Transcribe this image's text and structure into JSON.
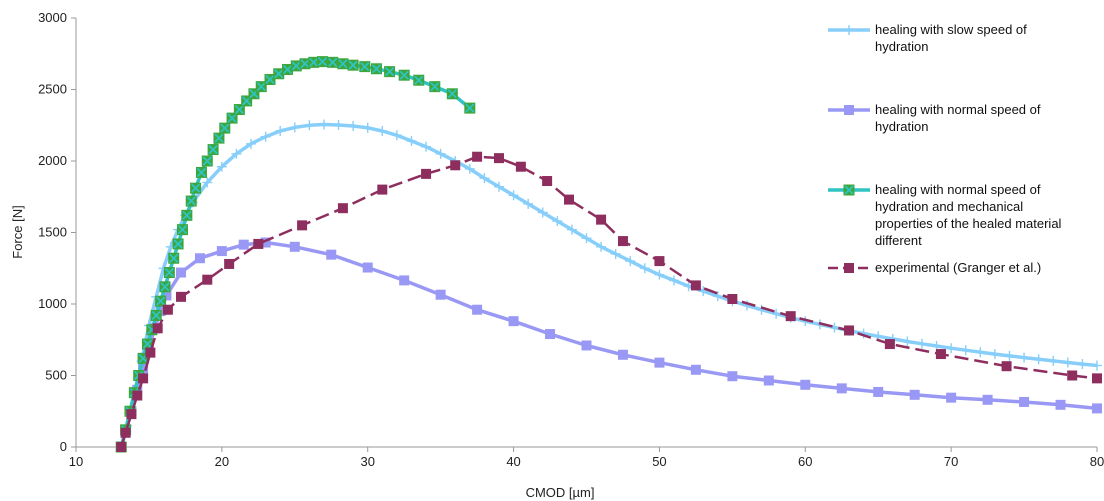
{
  "chart_data": {
    "type": "line",
    "title": "",
    "xlabel": "CMOD [µm]",
    "ylabel": "Force [N]",
    "xlim": [
      10,
      80
    ],
    "ylim": [
      0,
      3000
    ],
    "x_ticks": [
      "10",
      "20",
      "30",
      "40",
      "50",
      "60",
      "70",
      "80"
    ],
    "y_ticks": [
      "0",
      "500",
      "1000",
      "1500",
      "2000",
      "2500",
      "3000"
    ],
    "x_tick_values": [
      10,
      20,
      30,
      40,
      50,
      60,
      70,
      80
    ],
    "y_tick_values": [
      0,
      500,
      1000,
      1500,
      2000,
      2500,
      3000
    ],
    "grid": false,
    "legend_position": "right",
    "series": [
      {
        "name": [
          "healing with slow speed of",
          "hydration"
        ],
        "color": "#87CEFA",
        "marker": "plus",
        "dash": "solid",
        "points": [
          [
            13.1,
            0
          ],
          [
            13.5,
            150
          ],
          [
            14.0,
            350
          ],
          [
            14.5,
            600
          ],
          [
            15.0,
            850
          ],
          [
            15.5,
            1050
          ],
          [
            16.0,
            1250
          ],
          [
            16.5,
            1400
          ],
          [
            17.0,
            1520
          ],
          [
            17.5,
            1620
          ],
          [
            18.0,
            1710
          ],
          [
            19.0,
            1850
          ],
          [
            20.0,
            1960
          ],
          [
            21.0,
            2050
          ],
          [
            22.0,
            2120
          ],
          [
            23.0,
            2170
          ],
          [
            24.0,
            2210
          ],
          [
            25.0,
            2235
          ],
          [
            26.0,
            2250
          ],
          [
            27.0,
            2255
          ],
          [
            28.0,
            2252
          ],
          [
            29.0,
            2245
          ],
          [
            30.0,
            2232
          ],
          [
            31.0,
            2210
          ],
          [
            32.0,
            2180
          ],
          [
            33.0,
            2140
          ],
          [
            34.0,
            2100
          ],
          [
            35.0,
            2050
          ],
          [
            36.0,
            2000
          ],
          [
            37.0,
            1945
          ],
          [
            38.0,
            1880
          ],
          [
            39.0,
            1820
          ],
          [
            40.0,
            1760
          ],
          [
            41.0,
            1700
          ],
          [
            42.0,
            1640
          ],
          [
            43.0,
            1580
          ],
          [
            44.0,
            1520
          ],
          [
            45.0,
            1460
          ],
          [
            46.0,
            1400
          ],
          [
            47.0,
            1350
          ],
          [
            48.0,
            1300
          ],
          [
            49.0,
            1250
          ],
          [
            50.0,
            1205
          ],
          [
            51.0,
            1165
          ],
          [
            52.0,
            1125
          ],
          [
            53.0,
            1090
          ],
          [
            54.0,
            1055
          ],
          [
            55.0,
            1020
          ],
          [
            56.0,
            990
          ],
          [
            57.0,
            960
          ],
          [
            58.0,
            932
          ],
          [
            59.0,
            905
          ],
          [
            60.0,
            880
          ],
          [
            61.0,
            857
          ],
          [
            62.0,
            835
          ],
          [
            63.0,
            813
          ],
          [
            64.0,
            793
          ],
          [
            65.0,
            774
          ],
          [
            66.0,
            756
          ],
          [
            67.0,
            738
          ],
          [
            68.0,
            722
          ],
          [
            69.0,
            706
          ],
          [
            70.0,
            691
          ],
          [
            71.0,
            677
          ],
          [
            72.0,
            663
          ],
          [
            73.0,
            650
          ],
          [
            74.0,
            637
          ],
          [
            75.0,
            625
          ],
          [
            76.0,
            613
          ],
          [
            77.0,
            602
          ],
          [
            78.0,
            591
          ],
          [
            79.0,
            580
          ],
          [
            80.0,
            570
          ]
        ]
      },
      {
        "name": [
          "healing with normal speed of",
          "hydration"
        ],
        "color": "#9999F5",
        "marker": "square",
        "dash": "solid",
        "points": [
          [
            13.1,
            0
          ],
          [
            13.4,
            100
          ],
          [
            13.8,
            250
          ],
          [
            14.2,
            400
          ],
          [
            14.6,
            550
          ],
          [
            15.0,
            700
          ],
          [
            15.4,
            830
          ],
          [
            15.8,
            950
          ],
          [
            16.2,
            1060
          ],
          [
            17.2,
            1220
          ],
          [
            18.5,
            1320
          ],
          [
            20.0,
            1370
          ],
          [
            21.5,
            1415
          ],
          [
            23.0,
            1430
          ],
          [
            25.0,
            1400
          ],
          [
            27.5,
            1345
          ],
          [
            30.0,
            1255
          ],
          [
            32.5,
            1165
          ],
          [
            35.0,
            1065
          ],
          [
            37.5,
            960
          ],
          [
            40.0,
            880
          ],
          [
            42.5,
            790
          ],
          [
            45.0,
            710
          ],
          [
            47.5,
            645
          ],
          [
            50.0,
            590
          ],
          [
            52.5,
            540
          ],
          [
            55.0,
            495
          ],
          [
            57.5,
            465
          ],
          [
            60.0,
            435
          ],
          [
            62.5,
            410
          ],
          [
            65.0,
            385
          ],
          [
            67.5,
            365
          ],
          [
            70.0,
            345
          ],
          [
            72.5,
            330
          ],
          [
            75.0,
            315
          ],
          [
            77.5,
            295
          ],
          [
            80.0,
            270
          ]
        ]
      },
      {
        "name": [
          "healing with normal speed of",
          "hydration and mechanical",
          "properties of the healed material",
          "different"
        ],
        "color": "#2EC4C4",
        "marker": "x-square",
        "dash": "solid",
        "points": [
          [
            13.1,
            0
          ],
          [
            13.4,
            120
          ],
          [
            13.7,
            250
          ],
          [
            14.0,
            380
          ],
          [
            14.3,
            500
          ],
          [
            14.6,
            620
          ],
          [
            14.9,
            720
          ],
          [
            15.2,
            820
          ],
          [
            15.5,
            920
          ],
          [
            15.8,
            1020
          ],
          [
            16.1,
            1120
          ],
          [
            16.4,
            1220
          ],
          [
            16.7,
            1320
          ],
          [
            17.0,
            1420
          ],
          [
            17.3,
            1520
          ],
          [
            17.6,
            1620
          ],
          [
            17.9,
            1720
          ],
          [
            18.2,
            1810
          ],
          [
            18.6,
            1920
          ],
          [
            19.0,
            2000
          ],
          [
            19.4,
            2080
          ],
          [
            19.8,
            2160
          ],
          [
            20.2,
            2230
          ],
          [
            20.7,
            2300
          ],
          [
            21.2,
            2360
          ],
          [
            21.7,
            2420
          ],
          [
            22.2,
            2470
          ],
          [
            22.7,
            2520
          ],
          [
            23.3,
            2570
          ],
          [
            23.9,
            2610
          ],
          [
            24.5,
            2640
          ],
          [
            25.1,
            2665
          ],
          [
            25.7,
            2680
          ],
          [
            26.3,
            2690
          ],
          [
            26.9,
            2695
          ],
          [
            27.6,
            2690
          ],
          [
            28.3,
            2680
          ],
          [
            29.0,
            2670
          ],
          [
            29.8,
            2660
          ],
          [
            30.6,
            2645
          ],
          [
            31.5,
            2625
          ],
          [
            32.5,
            2600
          ],
          [
            33.5,
            2565
          ],
          [
            34.6,
            2520
          ],
          [
            35.8,
            2470
          ],
          [
            37.0,
            2370
          ]
        ]
      },
      {
        "name": [
          "experimental (Granger et al.)"
        ],
        "color": "#8E2E5E",
        "marker": "square",
        "dash": "dashed",
        "points": [
          [
            13.1,
            0
          ],
          [
            13.4,
            100
          ],
          [
            13.8,
            230
          ],
          [
            14.2,
            360
          ],
          [
            14.6,
            480
          ],
          [
            15.1,
            660
          ],
          [
            15.6,
            830
          ],
          [
            16.3,
            960
          ],
          [
            17.2,
            1050
          ],
          [
            19.0,
            1170
          ],
          [
            20.5,
            1280
          ],
          [
            22.5,
            1420
          ],
          [
            25.5,
            1550
          ],
          [
            28.3,
            1670
          ],
          [
            31.0,
            1800
          ],
          [
            34.0,
            1910
          ],
          [
            36.0,
            1970
          ],
          [
            37.5,
            2030
          ],
          [
            39.0,
            2020
          ],
          [
            40.5,
            1960
          ],
          [
            42.3,
            1860
          ],
          [
            43.8,
            1730
          ],
          [
            46.0,
            1590
          ],
          [
            47.5,
            1440
          ],
          [
            50.0,
            1300
          ],
          [
            52.5,
            1130
          ],
          [
            55.0,
            1035
          ],
          [
            59.0,
            915
          ],
          [
            63.0,
            815
          ],
          [
            65.8,
            720
          ],
          [
            69.3,
            650
          ],
          [
            73.8,
            565
          ],
          [
            78.3,
            500
          ],
          [
            80.0,
            480
          ]
        ]
      }
    ]
  }
}
